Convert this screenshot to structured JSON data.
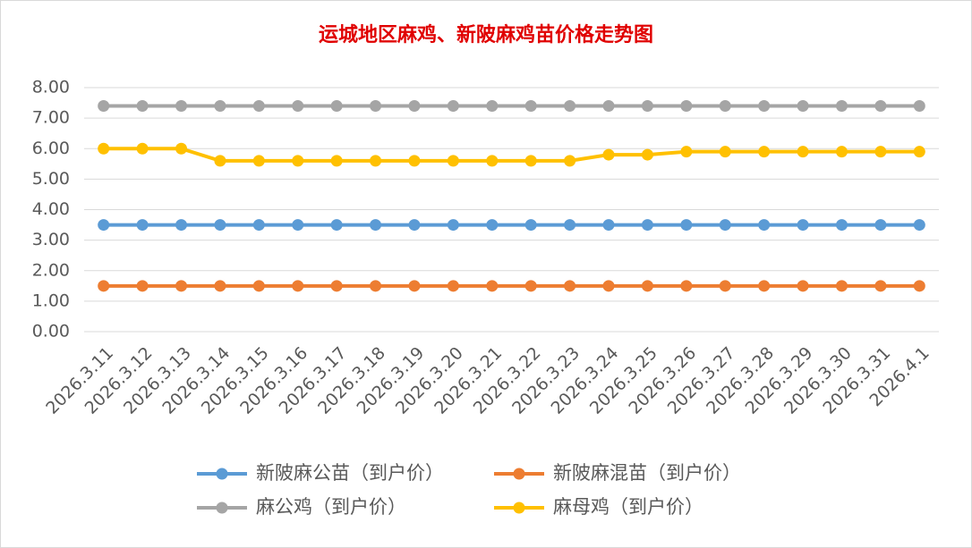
{
  "chart_data": {
    "type": "line",
    "title": "运城地区麻鸡、新陂麻鸡苗价格走势图",
    "categories": [
      "2026.3.11",
      "2026.3.12",
      "2026.3.13",
      "2026.3.14",
      "2026.3.15",
      "2026.3.16",
      "2026.3.17",
      "2026.3.18",
      "2026.3.19",
      "2026.3.20",
      "2026.3.21",
      "2026.3.22",
      "2026.3.23",
      "2026.3.24",
      "2026.3.25",
      "2026.3.26",
      "2026.3.27",
      "2026.3.28",
      "2026.3.29",
      "2026.3.30",
      "2026.3.31",
      "2026.4.1"
    ],
    "series": [
      {
        "name": "新陂麻公苗（到户价）",
        "color": "#5b9bd5",
        "values": [
          3.5,
          3.5,
          3.5,
          3.5,
          3.5,
          3.5,
          3.5,
          3.5,
          3.5,
          3.5,
          3.5,
          3.5,
          3.5,
          3.5,
          3.5,
          3.5,
          3.5,
          3.5,
          3.5,
          3.5,
          3.5,
          3.5
        ]
      },
      {
        "name": "新陂麻混苗（到户价）",
        "color": "#ed7d31",
        "values": [
          1.5,
          1.5,
          1.5,
          1.5,
          1.5,
          1.5,
          1.5,
          1.5,
          1.5,
          1.5,
          1.5,
          1.5,
          1.5,
          1.5,
          1.5,
          1.5,
          1.5,
          1.5,
          1.5,
          1.5,
          1.5,
          1.5
        ]
      },
      {
        "name": "麻公鸡（到户价）",
        "color": "#a5a5a5",
        "values": [
          7.4,
          7.4,
          7.4,
          7.4,
          7.4,
          7.4,
          7.4,
          7.4,
          7.4,
          7.4,
          7.4,
          7.4,
          7.4,
          7.4,
          7.4,
          7.4,
          7.4,
          7.4,
          7.4,
          7.4,
          7.4,
          7.4
        ]
      },
      {
        "name": "麻母鸡（到户价）",
        "color": "#ffc000",
        "values": [
          6.0,
          6.0,
          6.0,
          5.6,
          5.6,
          5.6,
          5.6,
          5.6,
          5.6,
          5.6,
          5.6,
          5.6,
          5.6,
          5.8,
          5.8,
          5.9,
          5.9,
          5.9,
          5.9,
          5.9,
          5.9,
          5.9
        ]
      }
    ],
    "ylim": [
      0,
      8
    ],
    "yticks": [
      {
        "value": 0,
        "label": "0.00"
      },
      {
        "value": 1,
        "label": "1.00"
      },
      {
        "value": 2,
        "label": "2.00"
      },
      {
        "value": 3,
        "label": "3.00"
      },
      {
        "value": 4,
        "label": "4.00"
      },
      {
        "value": 5,
        "label": "5.00"
      },
      {
        "value": 6,
        "label": "6.00"
      },
      {
        "value": 7,
        "label": "7.00"
      },
      {
        "value": 8,
        "label": "8.00"
      }
    ],
    "grid": true,
    "legend": "bottom"
  }
}
